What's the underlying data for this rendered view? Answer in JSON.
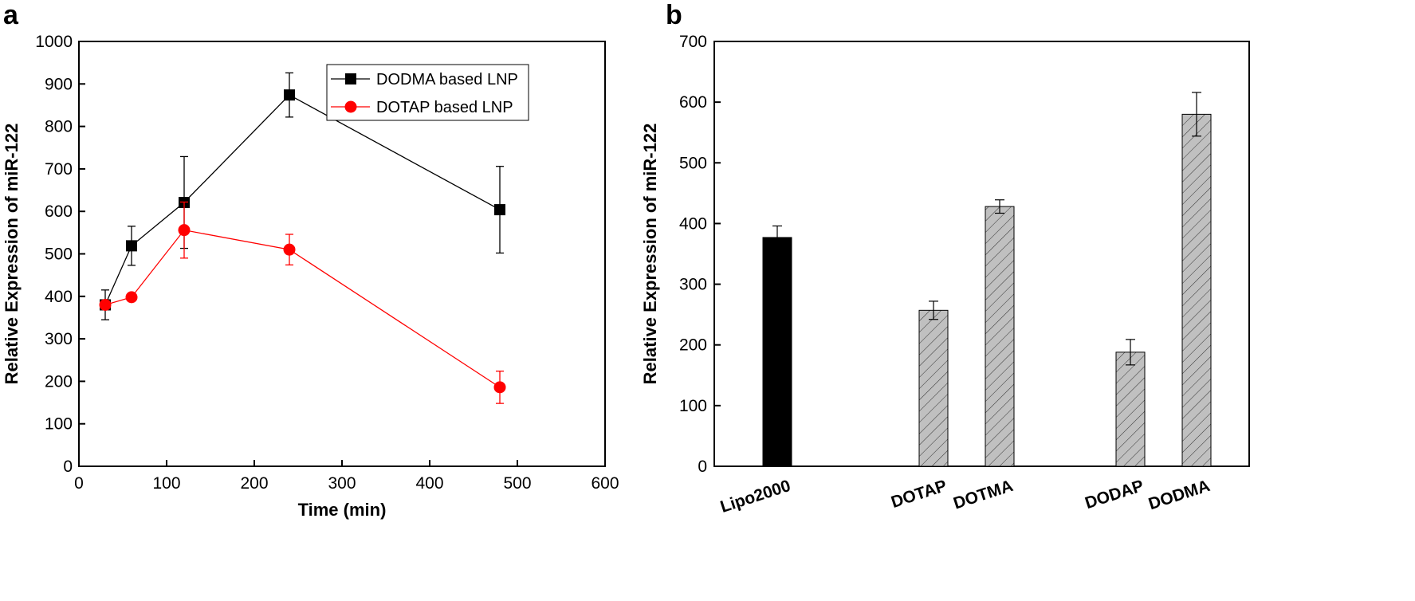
{
  "chart_data": [
    {
      "panel": "a",
      "type": "line",
      "xlabel": "Time (min)",
      "ylabel": "Relative Expression of miR-122",
      "xlim": [
        0,
        600
      ],
      "ylim": [
        0,
        1000
      ],
      "xticks": [
        0,
        100,
        200,
        300,
        400,
        500,
        600
      ],
      "yticks": [
        0,
        100,
        200,
        300,
        400,
        500,
        600,
        700,
        800,
        900,
        1000
      ],
      "grid": false,
      "legend_position": "top-right",
      "series": [
        {
          "name": "DODMA based LNP",
          "color": "#000000",
          "marker": "square",
          "x": [
            30,
            60,
            120,
            240,
            480
          ],
          "y": [
            380,
            519,
            621,
            874,
            604
          ],
          "err": [
            35,
            46,
            108,
            52,
            102
          ]
        },
        {
          "name": "DOTAP based LNP",
          "color": "#ff0000",
          "marker": "circle",
          "x": [
            30,
            60,
            120,
            240,
            480
          ],
          "y": [
            380,
            398,
            556,
            510,
            186
          ],
          "err": [
            0,
            0,
            66,
            36,
            38
          ]
        }
      ]
    },
    {
      "panel": "b",
      "type": "bar",
      "xlabel": "",
      "ylabel": "Relative Expression of miR-122",
      "ylim": [
        0,
        700
      ],
      "yticks": [
        0,
        100,
        200,
        300,
        400,
        500,
        600,
        700
      ],
      "grid": false,
      "categories": [
        "Lipo2000",
        "DOTAP",
        "DOTMA",
        "DODAP",
        "DODMA"
      ],
      "values": [
        377,
        257,
        428,
        188,
        580
      ],
      "err": [
        19,
        15,
        11,
        21,
        36
      ],
      "fills": [
        "solid-black",
        "hatched-gray",
        "hatched-gray",
        "hatched-gray",
        "hatched-gray"
      ],
      "colors": {
        "solid": "#000000",
        "hatched": "#c0c0c0"
      }
    }
  ]
}
